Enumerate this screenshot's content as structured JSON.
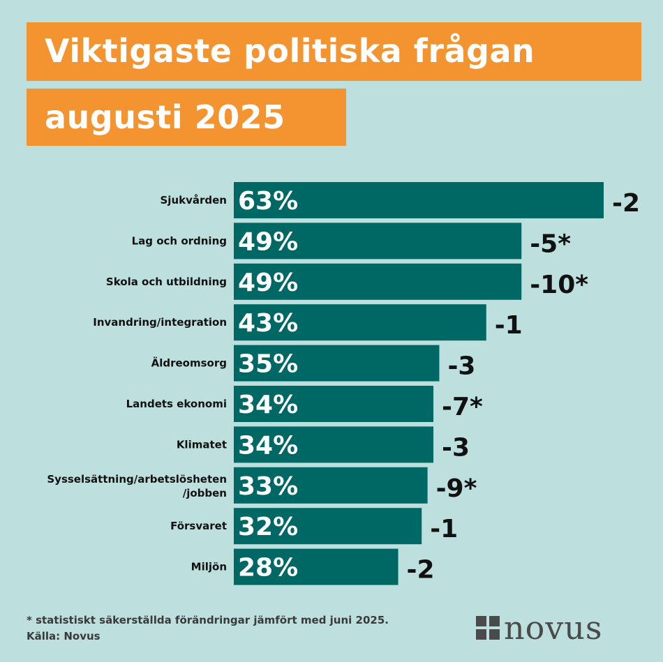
{
  "title_line1": "Viktigaste politiska frågan",
  "title_line2": "augusti 2025",
  "colors": {
    "background": "#bde0df",
    "title_bg": "#f39431",
    "bar": "#006864"
  },
  "chart_data": {
    "type": "bar",
    "orientation": "horizontal",
    "categories": [
      "Sjukvården",
      "Lag och ordning",
      "Skola och utbildning",
      "Invandring/integration",
      "Äldreomsorg",
      "Landets ekonomi",
      "Klimatet",
      "Sysselsättning/arbetslösheten /jobben",
      "Försvaret",
      "Miljön"
    ],
    "values": [
      63,
      49,
      49,
      43,
      35,
      34,
      34,
      33,
      32,
      28
    ],
    "value_labels": [
      "63%",
      "49%",
      "49%",
      "43%",
      "35%",
      "34%",
      "34%",
      "33%",
      "32%",
      "28%"
    ],
    "change_labels": [
      "-2",
      "-5*",
      "-10*",
      "-1",
      "-3",
      "-7*",
      "-3",
      "-9*",
      "-1",
      "-2"
    ],
    "grid": false,
    "legend": "none"
  },
  "footnote": "* statistiskt säkerställda förändringar jämfört med juni 2025.",
  "source": "Källa: Novus",
  "logo_text": "novus"
}
